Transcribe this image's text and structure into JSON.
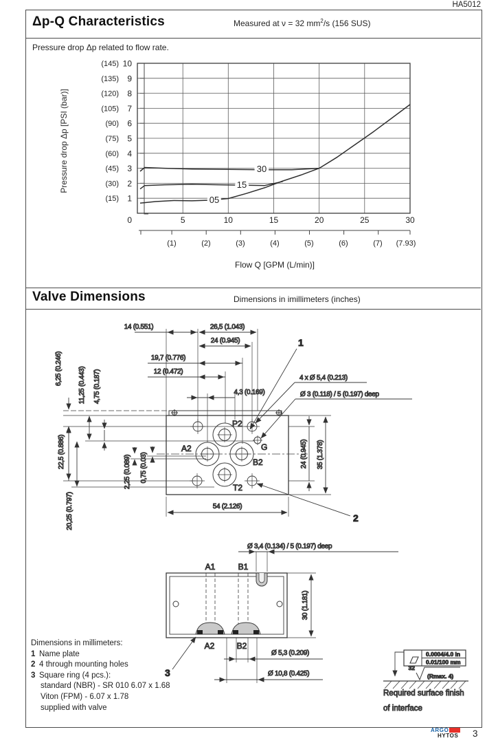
{
  "page": {
    "code": "HA5012",
    "number": "3"
  },
  "section_dpq": {
    "title": "Δp-Q Characteristics",
    "measured_prefix": "Measured at  ν = 32 mm",
    "measured_sup": "2",
    "measured_suffix": "/s (156 SUS)",
    "description": "Pressure drop Δp related to flow rate."
  },
  "chart_data": {
    "type": "line",
    "xlabel": "Flow Q [GPM (L/min)]",
    "ylabel": "Pressure drop Δp [PSI (bar)]",
    "xlim": [
      0,
      30
    ],
    "ylim": [
      0,
      10
    ],
    "grid": "on",
    "origin": "0",
    "y_ticks_bar": [
      "10",
      "9",
      "8",
      "7",
      "6",
      "5",
      "4",
      "3",
      "2",
      "1"
    ],
    "y_ticks_psi": [
      "(145)",
      "(135)",
      "(120)",
      "(105)",
      "(90)",
      "(75)",
      "(60)",
      "(45)",
      "(30)",
      "(15)"
    ],
    "x_ticks": [
      "5",
      "10",
      "15",
      "20",
      "25",
      "30"
    ],
    "x_ticks_gpm": [
      "(1)",
      "(2)",
      "(3)",
      "(4)",
      "(5)",
      "(6)",
      "(7)",
      "(7.93)"
    ],
    "series": [
      {
        "name": "05",
        "points": [
          [
            0.3,
            0.68
          ],
          [
            2,
            0.78
          ],
          [
            4,
            0.85
          ],
          [
            6,
            0.83
          ],
          [
            8,
            0.87
          ],
          [
            10,
            0.98
          ],
          [
            12,
            1.32
          ],
          [
            14,
            1.7
          ],
          [
            16,
            2.15
          ],
          [
            18,
            2.55
          ],
          [
            20,
            3.0
          ],
          [
            22,
            3.75
          ],
          [
            24,
            4.6
          ],
          [
            26,
            5.45
          ],
          [
            28,
            6.35
          ],
          [
            30,
            7.25
          ]
        ]
      },
      {
        "name": "15",
        "points": [
          [
            0.3,
            1.62
          ],
          [
            0.8,
            1.85
          ],
          [
            3,
            1.9
          ],
          [
            6,
            1.93
          ],
          [
            9,
            1.9
          ],
          [
            12,
            1.87
          ],
          [
            14,
            1.85
          ],
          [
            16,
            2.12
          ]
        ]
      },
      {
        "name": "30",
        "points": [
          [
            0.3,
            2.8
          ],
          [
            0.8,
            3.05
          ],
          [
            3,
            3.0
          ],
          [
            6,
            2.95
          ],
          [
            10,
            2.92
          ],
          [
            14,
            2.9
          ],
          [
            17,
            2.9
          ],
          [
            20,
            3.0
          ]
        ]
      }
    ]
  },
  "section_dim": {
    "title": "Valve Dimensions",
    "subtitle": "Dimensions in imillimeters (inches)"
  },
  "top_view": {
    "ports": {
      "p2": "P2",
      "a2": "A2",
      "g": "G",
      "b2": "B2",
      "t2": "T2"
    },
    "dims_top": {
      "d14": "14 (0.551)",
      "d265": "26,5 (1.043)",
      "d24": "24 (0.945)",
      "d197": "19,7 (0.776)",
      "d12": "12 (0.472)",
      "d43": "4,3 (0.169)"
    },
    "dims_left": {
      "d625": "6,25 (0.246)",
      "d1125": "11,25 (0.443)",
      "d475": "4,75 (0.187)",
      "d225": "22,5 (0.886)",
      "d2025": "20,25 (0.797)",
      "d0225": "2,25 (0.089)",
      "d075": "0,75 (0.03)"
    },
    "dims_right": {
      "d24": "24 (0.945)",
      "d35": "35 (1.378)"
    },
    "dim_bottom": "54 (2.126)",
    "ann_holes": "4 x Ø 5,4 (0.213)",
    "ann_pin": "Ø 3 (0.118) / 5 (0.197) deep",
    "callout1": "1",
    "callout2": "2"
  },
  "bottom_view": {
    "labels": {
      "a1": "A1",
      "b1": "B1",
      "a2": "A2",
      "b2": "B2"
    },
    "dim_slot": "Ø 3,4 (0.134) / 5 (0.197) deep",
    "dim_height": "30 (1.181)",
    "dim_port": "Ø 5,3 (0.209)",
    "dim_ring": "Ø 10,8 (0.425)",
    "callout3": "3"
  },
  "notes": {
    "heading": "Dimensions in millimeters:",
    "items": [
      {
        "num": "1",
        "text": "Name plate"
      },
      {
        "num": "2",
        "text": "4 through mounting holes"
      },
      {
        "num": "3",
        "text": "Square ring (4 pcs.):"
      }
    ],
    "cont": [
      "standard (NBR) - SR 010 6.07 x 1.68",
      "Viton (FPM) - 6.07 x 1.78",
      "supplied with valve"
    ]
  },
  "surface": {
    "flat_in": "0.0004/4.0  in",
    "flat_mm": "0.01/100  mm",
    "rough_grade": "32",
    "rough_note": "(Rmax. 4)",
    "caption1": "Required surface finish",
    "caption2": "of interface"
  }
}
